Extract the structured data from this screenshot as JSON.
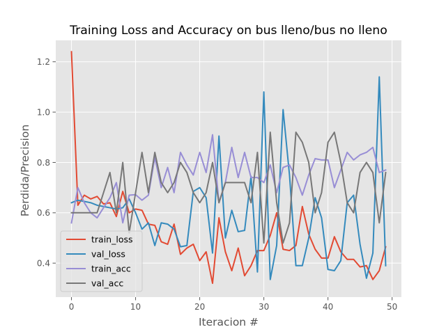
{
  "chart_data": {
    "type": "line",
    "title": "Training Loss and Accuracy on bus lleno/bus no lleno",
    "xlabel": "Iteracion #",
    "ylabel": "Perdida/Precision",
    "xlim": [
      -2.45,
      51.45
    ],
    "ylim": [
      0.265,
      1.285
    ],
    "xticks": [
      0,
      10,
      20,
      30,
      40,
      50
    ],
    "yticks": [
      0.4,
      0.6,
      0.8,
      1.0,
      1.2
    ],
    "xtick_labels": [
      "0",
      "10",
      "20",
      "30",
      "40",
      "50"
    ],
    "ytick_labels": [
      "0.4",
      "0.6",
      "0.8",
      "1.0",
      "1.2"
    ],
    "grid": true,
    "style": "ggplot",
    "legend_position": "lower-left",
    "x": [
      0,
      1,
      2,
      3,
      4,
      5,
      6,
      7,
      8,
      9,
      10,
      11,
      12,
      13,
      14,
      15,
      16,
      17,
      18,
      19,
      20,
      21,
      22,
      23,
      24,
      25,
      26,
      27,
      28,
      29,
      30,
      31,
      32,
      33,
      34,
      35,
      36,
      37,
      38,
      39,
      40,
      41,
      42,
      43,
      44,
      45,
      46,
      47,
      48,
      49
    ],
    "series": [
      {
        "name": "train_loss",
        "color": "#E24A33",
        "values": [
          1.24,
          0.63,
          0.67,
          0.655,
          0.665,
          0.635,
          0.64,
          0.585,
          0.685,
          0.6,
          0.615,
          0.61,
          0.555,
          0.55,
          0.485,
          0.475,
          0.555,
          0.435,
          0.46,
          0.475,
          0.41,
          0.445,
          0.32,
          0.58,
          0.445,
          0.37,
          0.46,
          0.35,
          0.39,
          0.45,
          0.45,
          0.51,
          0.6,
          0.455,
          0.45,
          0.47,
          0.625,
          0.515,
          0.455,
          0.42,
          0.42,
          0.505,
          0.445,
          0.415,
          0.415,
          0.385,
          0.39,
          0.335,
          0.37,
          0.465
        ]
      },
      {
        "name": "val_loss",
        "color": "#348ABD",
        "values": [
          0.64,
          0.65,
          0.645,
          0.64,
          0.63,
          0.625,
          0.62,
          0.615,
          0.62,
          0.655,
          0.6,
          0.535,
          0.56,
          0.47,
          0.56,
          0.555,
          0.535,
          0.465,
          0.47,
          0.685,
          0.7,
          0.66,
          0.44,
          0.905,
          0.5,
          0.61,
          0.525,
          0.53,
          0.745,
          0.365,
          1.08,
          0.335,
          0.47,
          1.01,
          0.75,
          0.39,
          0.39,
          0.5,
          0.66,
          0.58,
          0.375,
          0.37,
          0.41,
          0.64,
          0.67,
          0.475,
          0.34,
          0.44,
          1.14,
          0.39
        ]
      },
      {
        "name": "train_acc",
        "color": "#988ED5",
        "values": [
          0.56,
          0.7,
          0.64,
          0.6,
          0.58,
          0.62,
          0.66,
          0.72,
          0.56,
          0.67,
          0.672,
          0.65,
          0.67,
          0.82,
          0.7,
          0.78,
          0.68,
          0.84,
          0.79,
          0.75,
          0.84,
          0.76,
          0.91,
          0.64,
          0.72,
          0.86,
          0.74,
          0.84,
          0.74,
          0.74,
          0.72,
          0.79,
          0.68,
          0.78,
          0.79,
          0.74,
          0.67,
          0.75,
          0.815,
          0.81,
          0.81,
          0.7,
          0.77,
          0.84,
          0.81,
          0.83,
          0.84,
          0.86,
          0.76,
          0.77
        ]
      },
      {
        "name": "val_acc",
        "color": "#777777",
        "values": [
          0.6,
          0.6,
          0.6,
          0.6,
          0.6,
          0.68,
          0.76,
          0.6,
          0.8,
          0.52,
          0.68,
          0.84,
          0.68,
          0.84,
          0.72,
          0.68,
          0.72,
          0.8,
          0.76,
          0.68,
          0.64,
          0.68,
          0.8,
          0.64,
          0.72,
          0.72,
          0.72,
          0.72,
          0.64,
          0.84,
          0.48,
          0.92,
          0.64,
          0.48,
          0.56,
          0.92,
          0.88,
          0.8,
          0.6,
          0.68,
          0.88,
          0.92,
          0.8,
          0.64,
          0.6,
          0.76,
          0.8,
          0.76,
          0.56,
          0.76
        ]
      }
    ]
  }
}
